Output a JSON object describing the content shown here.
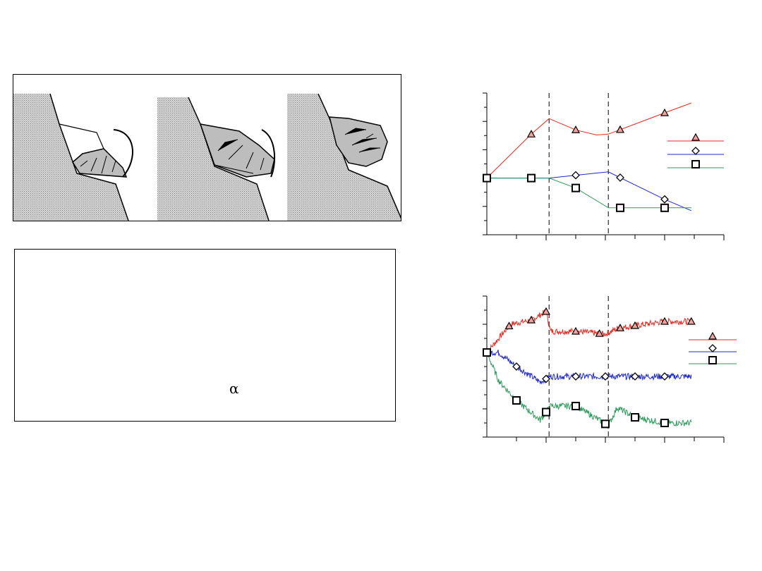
{
  "text_panel": {
    "symbol": "α"
  },
  "colors": {
    "series_triangle": "#e8281e",
    "series_diamond": "#1e28d2",
    "series_square": "#2a9a5a",
    "rock": "#cfcfcf",
    "block": "#bdbdbd"
  },
  "chart_data": [
    {
      "type": "line",
      "grid": false,
      "markers": [
        "triangle",
        "diamond",
        "square"
      ],
      "series": [
        {
          "marker": "triangle",
          "color": "#e8281e",
          "points": [
            [
              0,
              0
            ],
            [
              1.5,
              1.55
            ],
            [
              2.1,
              2.1
            ],
            [
              3.0,
              1.7
            ],
            [
              3.7,
              1.52
            ],
            [
              4.1,
              1.55
            ],
            [
              6.0,
              2.3
            ],
            [
              6.9,
              2.65
            ]
          ]
        },
        {
          "marker": "diamond",
          "color": "#1e28d2",
          "points": [
            [
              0,
              0
            ],
            [
              2.1,
              0
            ],
            [
              3.0,
              0.1
            ],
            [
              4.1,
              0.22
            ],
            [
              6.0,
              -0.75
            ],
            [
              6.9,
              -1.15
            ]
          ]
        },
        {
          "marker": "square",
          "color": "#2a9a5a",
          "points": [
            [
              0,
              0
            ],
            [
              1.5,
              0
            ],
            [
              2.1,
              0
            ],
            [
              3.0,
              -0.35
            ],
            [
              4.1,
              -1.05
            ],
            [
              6.9,
              -1.05
            ]
          ]
        }
      ],
      "marker_positions": {
        "triangle": [
          1.5,
          3.0,
          4.5,
          6.0
        ],
        "diamond": [
          3.0,
          4.5,
          6.0
        ],
        "square": [
          0,
          1.5,
          3.0,
          4.5,
          6.0
        ]
      },
      "vlines": [
        2.1,
        4.1
      ],
      "xlim": [
        0,
        8
      ],
      "ylim": [
        -2,
        3
      ]
    },
    {
      "type": "line",
      "grid": false,
      "series": [
        {
          "marker": "triangle",
          "color": "#e8281e",
          "points": [
            [
              0,
              0
            ],
            [
              0.8,
              1.0
            ],
            [
              1.5,
              1.15
            ],
            [
              2.0,
              1.45
            ],
            [
              2.15,
              0.75
            ],
            [
              3.0,
              0.75
            ],
            [
              4.0,
              0.65
            ],
            [
              4.4,
              0.85
            ],
            [
              5.0,
              0.95
            ],
            [
              6.0,
              1.1
            ],
            [
              6.9,
              1.1
            ]
          ]
        },
        {
          "marker": "diamond",
          "color": "#1e28d2",
          "points": [
            [
              0,
              0
            ],
            [
              0.4,
              0
            ],
            [
              1.0,
              -0.5
            ],
            [
              1.8,
              -1.05
            ],
            [
              2.15,
              -0.85
            ],
            [
              3.0,
              -0.85
            ],
            [
              4.0,
              -0.85
            ],
            [
              5.0,
              -0.85
            ],
            [
              6.9,
              -0.85
            ]
          ]
        },
        {
          "marker": "square",
          "color": "#2a9a5a",
          "points": [
            [
              0,
              0
            ],
            [
              0.4,
              -1.0
            ],
            [
              1.0,
              -1.7
            ],
            [
              1.8,
              -2.4
            ],
            [
              2.15,
              -1.9
            ],
            [
              3.0,
              -1.9
            ],
            [
              3.8,
              -2.4
            ],
            [
              4.1,
              -2.6
            ],
            [
              4.4,
              -1.95
            ],
            [
              5.0,
              -2.3
            ],
            [
              6.0,
              -2.5
            ],
            [
              6.9,
              -2.5
            ]
          ]
        }
      ],
      "marker_positions": {
        "triangle": [
          0,
          0.75,
          1.5,
          2.0,
          3.0,
          3.8,
          4.5,
          5.0,
          6.0,
          6.9
        ],
        "diamond": [
          0,
          1.0,
          2.0,
          3.0,
          4.0,
          5.0,
          6.0
        ],
        "square": [
          0,
          1.0,
          2.0,
          3.0,
          4.0,
          5.0,
          6.0
        ]
      },
      "vlines": [
        2.1,
        4.1
      ],
      "xlim": [
        0,
        8
      ],
      "ylim": [
        -3,
        2
      ]
    }
  ]
}
